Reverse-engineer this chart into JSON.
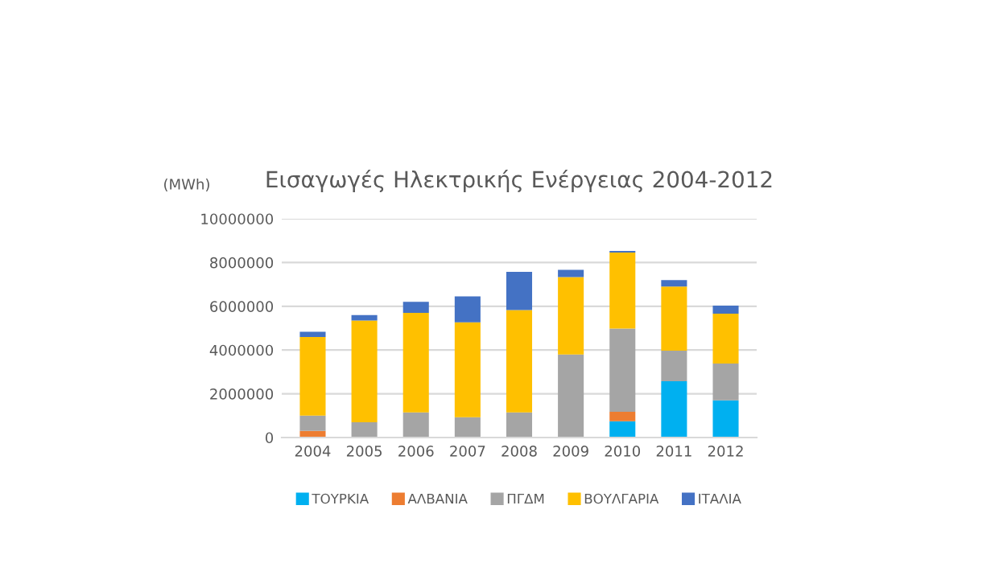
{
  "chart_data": {
    "type": "bar",
    "stacked": true,
    "title": "Εισαγωγές Ηλεκτρικής Ενέργειας 2004-2012",
    "ylabel": "(MWh)",
    "categories": [
      "2004",
      "2005",
      "2006",
      "2007",
      "2008",
      "2009",
      "2010",
      "2011",
      "2012"
    ],
    "series": [
      {
        "name": "ΤΟΥΡΚΙΑ",
        "color": "#00b0f0",
        "values": [
          0,
          0,
          0,
          0,
          0,
          0,
          740000,
          2570000,
          1700000
        ]
      },
      {
        "name": "ΑΛΒΑΝΙΑ",
        "color": "#ed7d31",
        "values": [
          300000,
          0,
          0,
          0,
          0,
          0,
          440000,
          0,
          0
        ]
      },
      {
        "name": "ΠΓΔΜ",
        "color": "#a5a5a5",
        "values": [
          700000,
          700000,
          1150000,
          930000,
          1150000,
          3800000,
          3800000,
          1400000,
          1680000
        ]
      },
      {
        "name": "ΒΟΥΛΓΑΡΙΑ",
        "color": "#ffc000",
        "values": [
          3600000,
          4650000,
          4550000,
          4340000,
          4680000,
          3530000,
          3480000,
          2930000,
          2280000
        ]
      },
      {
        "name": "ΙΤΑΛΙΑ",
        "color": "#4472c4",
        "values": [
          230000,
          250000,
          500000,
          1180000,
          1740000,
          340000,
          70000,
          300000,
          370000
        ]
      }
    ],
    "ylim": [
      0,
      10000000
    ],
    "yticks": [
      0,
      2000000,
      4000000,
      6000000,
      8000000,
      10000000
    ],
    "grid": "y",
    "legend": "bottom"
  }
}
